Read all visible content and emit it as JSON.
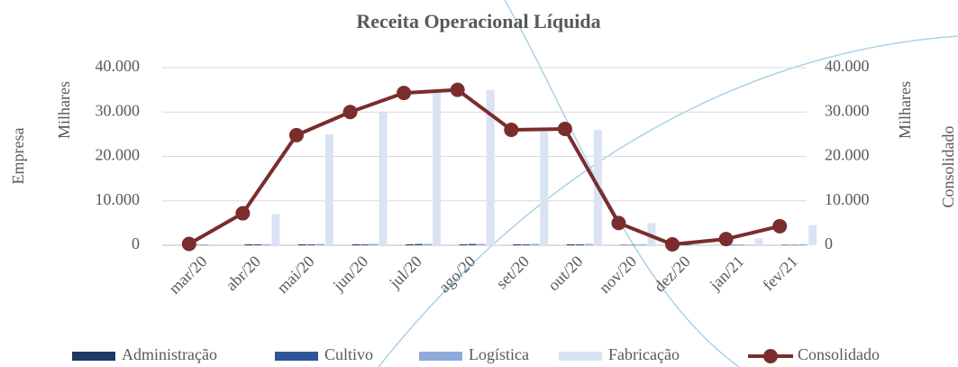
{
  "chart_data": {
    "type": "bar_line",
    "title": "Receita Operacional Líquida",
    "y_label": "Empresa",
    "y_unit": "Milhares",
    "y2_label": "Consolidado",
    "y2_unit": "Milhares",
    "categories": [
      "mar/20",
      "abr/20",
      "mai/20",
      "jun/20",
      "jul/20",
      "ago/20",
      "set/20",
      "out/20",
      "nov/20",
      "dez/20",
      "jan/21",
      "fev/21"
    ],
    "series": [
      {
        "name": "Administração",
        "type": "bar",
        "color": "#1f3864",
        "values": [
          100,
          200,
          200,
          200,
          200,
          200,
          200,
          200,
          100,
          100,
          100,
          100
        ]
      },
      {
        "name": "Cultivo",
        "type": "bar",
        "color": "#2f5597",
        "values": [
          100,
          200,
          200,
          200,
          300,
          300,
          200,
          200,
          100,
          100,
          100,
          100
        ]
      },
      {
        "name": "Logística",
        "type": "bar",
        "color": "#8faadc",
        "values": [
          100,
          200,
          300,
          300,
          300,
          300,
          300,
          300,
          200,
          100,
          100,
          200
        ]
      },
      {
        "name": "Fabricação",
        "type": "bar",
        "color": "#dae3f3",
        "values": [
          0,
          7000,
          25000,
          30000,
          34500,
          35000,
          26000,
          26000,
          5000,
          0,
          1500,
          4500
        ]
      },
      {
        "name": "Consolidado",
        "type": "line",
        "axis": "y2",
        "color": "#7b2c2c",
        "values": [
          300,
          7200,
          24800,
          30000,
          34300,
          35000,
          26000,
          26200,
          5000,
          200,
          1400,
          4300
        ]
      }
    ],
    "ylim": [
      0,
      40000
    ],
    "yticks": [
      0,
      {
        "value": 10000,
        "label": "10.000"
      },
      {
        "value": 20000,
        "label": "20.000"
      },
      {
        "value": 30000,
        "label": "30.000"
      },
      {
        "value": 40000,
        "label": "40.000"
      }
    ],
    "y2lim": [
      0,
      40000
    ],
    "y2ticks": [
      0,
      {
        "value": 10000,
        "label": "10.000"
      },
      {
        "value": 20000,
        "label": "20.000"
      },
      {
        "value": 30000,
        "label": "30.000"
      },
      {
        "value": 40000,
        "label": "40.000"
      }
    ],
    "grid": true,
    "legend": "bottom"
  }
}
